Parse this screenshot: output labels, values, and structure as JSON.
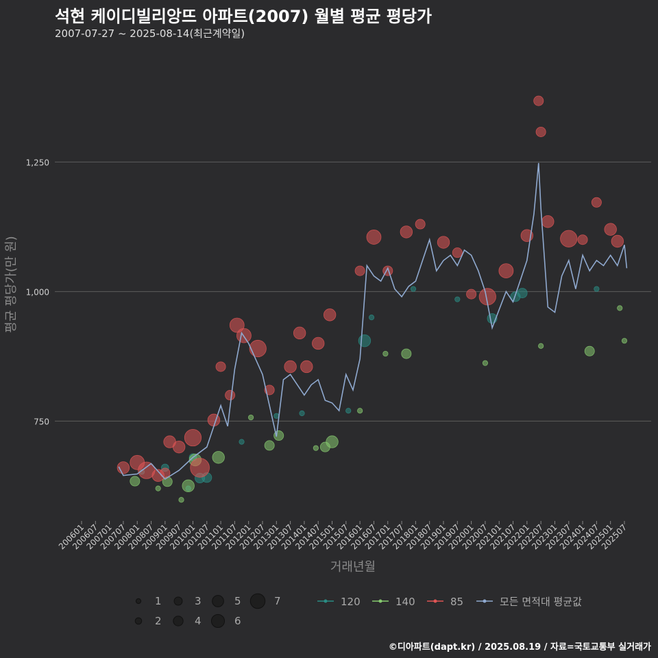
{
  "header": {
    "title": "석현 케이디빌리앙뜨 아파트(2007) 월별 평균 평당가",
    "subtitle": "2007-07-27 ~ 2025-08-14(최근계약일)"
  },
  "footer": {
    "source": "©디아파트(dapt.kr) / 2025.08.19 / 자료=국토교통부 실거래가"
  },
  "colors": {
    "s120": "#2a8c84",
    "s140": "#86c96f",
    "s85": "#e05555",
    "avg": "#8fa9cf",
    "grid": "#5c5c5c"
  },
  "chart_data": {
    "type": "scatter",
    "title": "석현 케이디빌리앙뜨 아파트(2007) 월별 평균 평당가",
    "xlabel": "거래년월",
    "ylabel": "평균 평당가(만 원)",
    "ylim": [
      560,
      1470
    ],
    "yticks": [
      750,
      1000,
      1250
    ],
    "xticks": [
      "200601",
      "200607",
      "200701",
      "200707",
      "200801",
      "200807",
      "200901",
      "200907",
      "201001",
      "201007",
      "201101",
      "201107",
      "201201",
      "201207",
      "201301",
      "201307",
      "201401",
      "201407",
      "201501",
      "201507",
      "201601",
      "201607",
      "201701",
      "201707",
      "201801",
      "201807",
      "201901",
      "201907",
      "202001",
      "202007",
      "202101",
      "202107",
      "202201",
      "202207",
      "202301",
      "202307",
      "202401",
      "202407",
      "202501",
      "202507"
    ],
    "size_legend": [
      1,
      2,
      3,
      4,
      5,
      6,
      7
    ],
    "series": [
      {
        "name": "120",
        "points": [
          {
            "x": "200803",
            "y": 652,
            "n": 1
          },
          {
            "x": "200901",
            "y": 660,
            "n": 2
          },
          {
            "x": "200911",
            "y": 620,
            "n": 1
          },
          {
            "x": "201001",
            "y": 680,
            "n": 2
          },
          {
            "x": "201004",
            "y": 640,
            "n": 3
          },
          {
            "x": "201007",
            "y": 641,
            "n": 3
          },
          {
            "x": "201110",
            "y": 710,
            "n": 1
          },
          {
            "x": "201301",
            "y": 760,
            "n": 1
          },
          {
            "x": "201312",
            "y": 765,
            "n": 1
          },
          {
            "x": "201508",
            "y": 770,
            "n": 1
          },
          {
            "x": "201603",
            "y": 905,
            "n": 4
          },
          {
            "x": "201606",
            "y": 950,
            "n": 1
          },
          {
            "x": "201712",
            "y": 1005,
            "n": 1
          },
          {
            "x": "201907",
            "y": 985,
            "n": 1
          },
          {
            "x": "202010",
            "y": 948,
            "n": 3
          },
          {
            "x": "202108",
            "y": 990,
            "n": 3
          },
          {
            "x": "202111",
            "y": 997,
            "n": 3
          },
          {
            "x": "202407",
            "y": 1005,
            "n": 1
          }
        ]
      },
      {
        "name": "140",
        "points": [
          {
            "x": "200712",
            "y": 634,
            "n": 3
          },
          {
            "x": "200810",
            "y": 620,
            "n": 1
          },
          {
            "x": "200902",
            "y": 633,
            "n": 3
          },
          {
            "x": "200908",
            "y": 598,
            "n": 1
          },
          {
            "x": "200911",
            "y": 625,
            "n": 4
          },
          {
            "x": "201002",
            "y": 675,
            "n": 4
          },
          {
            "x": "201012",
            "y": 680,
            "n": 4
          },
          {
            "x": "201202",
            "y": 757,
            "n": 1
          },
          {
            "x": "201210",
            "y": 703,
            "n": 3
          },
          {
            "x": "201302",
            "y": 722,
            "n": 3
          },
          {
            "x": "201406",
            "y": 698,
            "n": 1
          },
          {
            "x": "201410",
            "y": 700,
            "n": 3
          },
          {
            "x": "201501",
            "y": 710,
            "n": 4
          },
          {
            "x": "201601",
            "y": 770,
            "n": 1
          },
          {
            "x": "201612",
            "y": 880,
            "n": 1
          },
          {
            "x": "201709",
            "y": 880,
            "n": 3
          },
          {
            "x": "202007",
            "y": 862,
            "n": 1
          },
          {
            "x": "202207",
            "y": 895,
            "n": 1
          },
          {
            "x": "202404",
            "y": 885,
            "n": 3
          },
          {
            "x": "202505",
            "y": 968,
            "n": 1
          },
          {
            "x": "202507",
            "y": 905,
            "n": 1
          }
        ]
      },
      {
        "name": "85",
        "points": [
          {
            "x": "200707",
            "y": 660,
            "n": 4
          },
          {
            "x": "200801",
            "y": 670,
            "n": 5
          },
          {
            "x": "200805",
            "y": 655,
            "n": 6
          },
          {
            "x": "200810",
            "y": 645,
            "n": 4
          },
          {
            "x": "200901",
            "y": 650,
            "n": 3
          },
          {
            "x": "200903",
            "y": 710,
            "n": 4
          },
          {
            "x": "200907",
            "y": 700,
            "n": 4
          },
          {
            "x": "201001",
            "y": 718,
            "n": 6
          },
          {
            "x": "201004",
            "y": 660,
            "n": 7
          },
          {
            "x": "201010",
            "y": 752,
            "n": 4
          },
          {
            "x": "201101",
            "y": 855,
            "n": 3
          },
          {
            "x": "201105",
            "y": 800,
            "n": 3
          },
          {
            "x": "201108",
            "y": 935,
            "n": 5
          },
          {
            "x": "201111",
            "y": 915,
            "n": 5
          },
          {
            "x": "201205",
            "y": 890,
            "n": 6
          },
          {
            "x": "201210",
            "y": 810,
            "n": 3
          },
          {
            "x": "201307",
            "y": 855,
            "n": 4
          },
          {
            "x": "201311",
            "y": 920,
            "n": 4
          },
          {
            "x": "201402",
            "y": 855,
            "n": 4
          },
          {
            "x": "201407",
            "y": 900,
            "n": 4
          },
          {
            "x": "201412",
            "y": 955,
            "n": 4
          },
          {
            "x": "201601",
            "y": 1040,
            "n": 3
          },
          {
            "x": "201607",
            "y": 1105,
            "n": 5
          },
          {
            "x": "201701",
            "y": 1040,
            "n": 3
          },
          {
            "x": "201709",
            "y": 1115,
            "n": 4
          },
          {
            "x": "201803",
            "y": 1130,
            "n": 3
          },
          {
            "x": "201901",
            "y": 1095,
            "n": 4
          },
          {
            "x": "201907",
            "y": 1075,
            "n": 3
          },
          {
            "x": "202001",
            "y": 995,
            "n": 3
          },
          {
            "x": "202008",
            "y": 990,
            "n": 6
          },
          {
            "x": "202104",
            "y": 1040,
            "n": 5
          },
          {
            "x": "202201",
            "y": 1108,
            "n": 4
          },
          {
            "x": "202206",
            "y": 1368,
            "n": 3
          },
          {
            "x": "202207",
            "y": 1308,
            "n": 3
          },
          {
            "x": "202210",
            "y": 1135,
            "n": 4
          },
          {
            "x": "202307",
            "y": 1102,
            "n": 6
          },
          {
            "x": "202401",
            "y": 1100,
            "n": 3
          },
          {
            "x": "202407",
            "y": 1172,
            "n": 3
          },
          {
            "x": "202501",
            "y": 1120,
            "n": 4
          },
          {
            "x": "202504",
            "y": 1097,
            "n": 4
          }
        ]
      },
      {
        "name": "모든 면적대 평균값",
        "kind": "line",
        "points": [
          {
            "x": "200705",
            "y": 662
          },
          {
            "x": "200707",
            "y": 645
          },
          {
            "x": "200801",
            "y": 648
          },
          {
            "x": "200807",
            "y": 668
          },
          {
            "x": "200901",
            "y": 638
          },
          {
            "x": "200907",
            "y": 655
          },
          {
            "x": "201001",
            "y": 680
          },
          {
            "x": "201007",
            "y": 700
          },
          {
            "x": "201101",
            "y": 780
          },
          {
            "x": "201104",
            "y": 740
          },
          {
            "x": "201107",
            "y": 850
          },
          {
            "x": "201110",
            "y": 920
          },
          {
            "x": "201201",
            "y": 900
          },
          {
            "x": "201207",
            "y": 840
          },
          {
            "x": "201301",
            "y": 720
          },
          {
            "x": "201304",
            "y": 830
          },
          {
            "x": "201307",
            "y": 840
          },
          {
            "x": "201310",
            "y": 820
          },
          {
            "x": "201401",
            "y": 800
          },
          {
            "x": "201404",
            "y": 820
          },
          {
            "x": "201407",
            "y": 830
          },
          {
            "x": "201410",
            "y": 790
          },
          {
            "x": "201501",
            "y": 785
          },
          {
            "x": "201504",
            "y": 770
          },
          {
            "x": "201507",
            "y": 840
          },
          {
            "x": "201510",
            "y": 810
          },
          {
            "x": "201601",
            "y": 870
          },
          {
            "x": "201604",
            "y": 1050
          },
          {
            "x": "201607",
            "y": 1030
          },
          {
            "x": "201610",
            "y": 1020
          },
          {
            "x": "201701",
            "y": 1045
          },
          {
            "x": "201704",
            "y": 1005
          },
          {
            "x": "201707",
            "y": 990
          },
          {
            "x": "201710",
            "y": 1010
          },
          {
            "x": "201801",
            "y": 1020
          },
          {
            "x": "201804",
            "y": 1060
          },
          {
            "x": "201807",
            "y": 1100
          },
          {
            "x": "201810",
            "y": 1040
          },
          {
            "x": "201901",
            "y": 1060
          },
          {
            "x": "201904",
            "y": 1070
          },
          {
            "x": "201907",
            "y": 1050
          },
          {
            "x": "201910",
            "y": 1080
          },
          {
            "x": "202001",
            "y": 1070
          },
          {
            "x": "202004",
            "y": 1040
          },
          {
            "x": "202007",
            "y": 1000
          },
          {
            "x": "202010",
            "y": 930
          },
          {
            "x": "202101",
            "y": 965
          },
          {
            "x": "202104",
            "y": 1000
          },
          {
            "x": "202107",
            "y": 980
          },
          {
            "x": "202110",
            "y": 1020
          },
          {
            "x": "202201",
            "y": 1060
          },
          {
            "x": "202204",
            "y": 1150
          },
          {
            "x": "202206",
            "y": 1248
          },
          {
            "x": "202207",
            "y": 1160
          },
          {
            "x": "202210",
            "y": 970
          },
          {
            "x": "202301",
            "y": 960
          },
          {
            "x": "202304",
            "y": 1030
          },
          {
            "x": "202307",
            "y": 1060
          },
          {
            "x": "202310",
            "y": 1005
          },
          {
            "x": "202401",
            "y": 1070
          },
          {
            "x": "202404",
            "y": 1040
          },
          {
            "x": "202407",
            "y": 1060
          },
          {
            "x": "202410",
            "y": 1050
          },
          {
            "x": "202501",
            "y": 1070
          },
          {
            "x": "202504",
            "y": 1050
          },
          {
            "x": "202507",
            "y": 1090
          },
          {
            "x": "202508",
            "y": 1045
          }
        ]
      }
    ]
  }
}
